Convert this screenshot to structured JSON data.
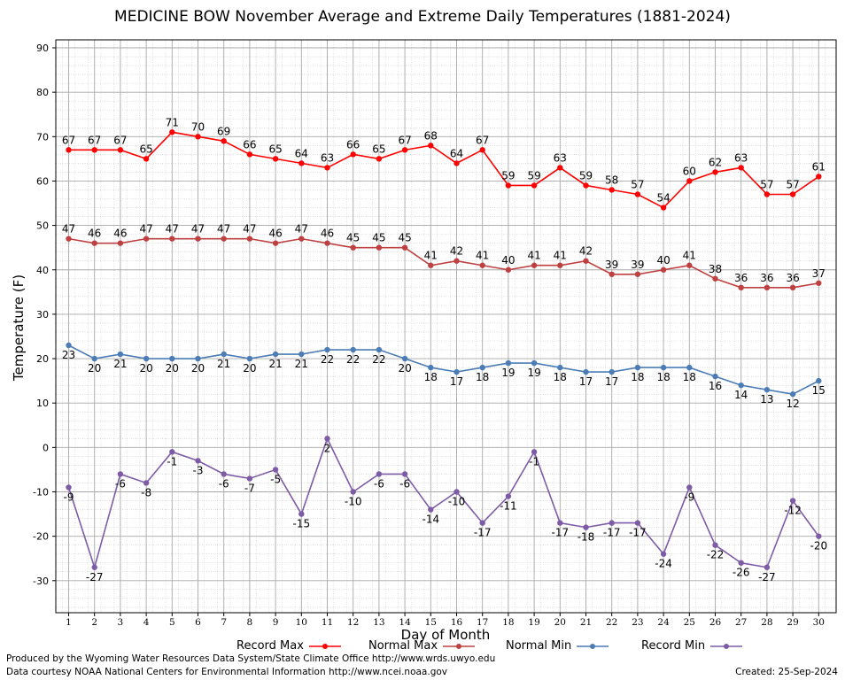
{
  "chart_data": {
    "type": "line",
    "title": "MEDICINE BOW November Average and Extreme Daily Temperatures (1881-2024)",
    "xlabel": "Day of Month",
    "ylabel": "Temperature (F)",
    "x": [
      1,
      2,
      3,
      4,
      5,
      6,
      7,
      8,
      9,
      10,
      11,
      12,
      13,
      14,
      15,
      16,
      17,
      18,
      19,
      20,
      21,
      22,
      23,
      24,
      25,
      26,
      27,
      28,
      29,
      30
    ],
    "ylim": [
      -38,
      90
    ],
    "yticks": [
      -30,
      -20,
      -10,
      0,
      10,
      20,
      30,
      40,
      50,
      60,
      70,
      80,
      90
    ],
    "grid": true,
    "legend_position": "bottom",
    "series": [
      {
        "name": "Record Max",
        "color": "#ff0000",
        "values": [
          67,
          67,
          67,
          65,
          71,
          70,
          69,
          66,
          65,
          64,
          63,
          66,
          65,
          67,
          68,
          64,
          67,
          59,
          59,
          63,
          59,
          58,
          57,
          54,
          60,
          62,
          63,
          57,
          57,
          61
        ]
      },
      {
        "name": "Normal Max",
        "color": "#bf4040",
        "values": [
          47,
          46,
          46,
          47,
          47,
          47,
          47,
          47,
          46,
          47,
          46,
          45,
          45,
          45,
          41,
          42,
          41,
          40,
          41,
          41,
          42,
          39,
          39,
          40,
          41,
          38,
          36,
          36,
          36,
          37
        ]
      },
      {
        "name": "Normal Min",
        "color": "#4b7cb5",
        "values": [
          23,
          20,
          21,
          20,
          20,
          20,
          21,
          20,
          21,
          21,
          22,
          22,
          22,
          20,
          18,
          17,
          18,
          19,
          19,
          18,
          17,
          17,
          18,
          18,
          18,
          16,
          14,
          13,
          12,
          15
        ]
      },
      {
        "name": "Record Min",
        "color": "#7d5ba6",
        "values": [
          -9,
          -27,
          -6,
          -8,
          -1,
          -3,
          -6,
          -7,
          -5,
          -15,
          2,
          -10,
          -6,
          -6,
          -14,
          -10,
          -17,
          -11,
          -1,
          -17,
          -18,
          -17,
          -17,
          -24,
          -9,
          -22,
          -26,
          -27,
          -12,
          -20
        ]
      }
    ]
  },
  "footer": {
    "produced_by": "Produced by the Wyoming Water Resources Data System/State Climate Office http://www.wrds.uwyo.edu",
    "data_courtesy": "Data courtesy NOAA National Centers for Environmental Information http://www.ncei.noaa.gov",
    "created": "Created: 25-Sep-2024"
  }
}
